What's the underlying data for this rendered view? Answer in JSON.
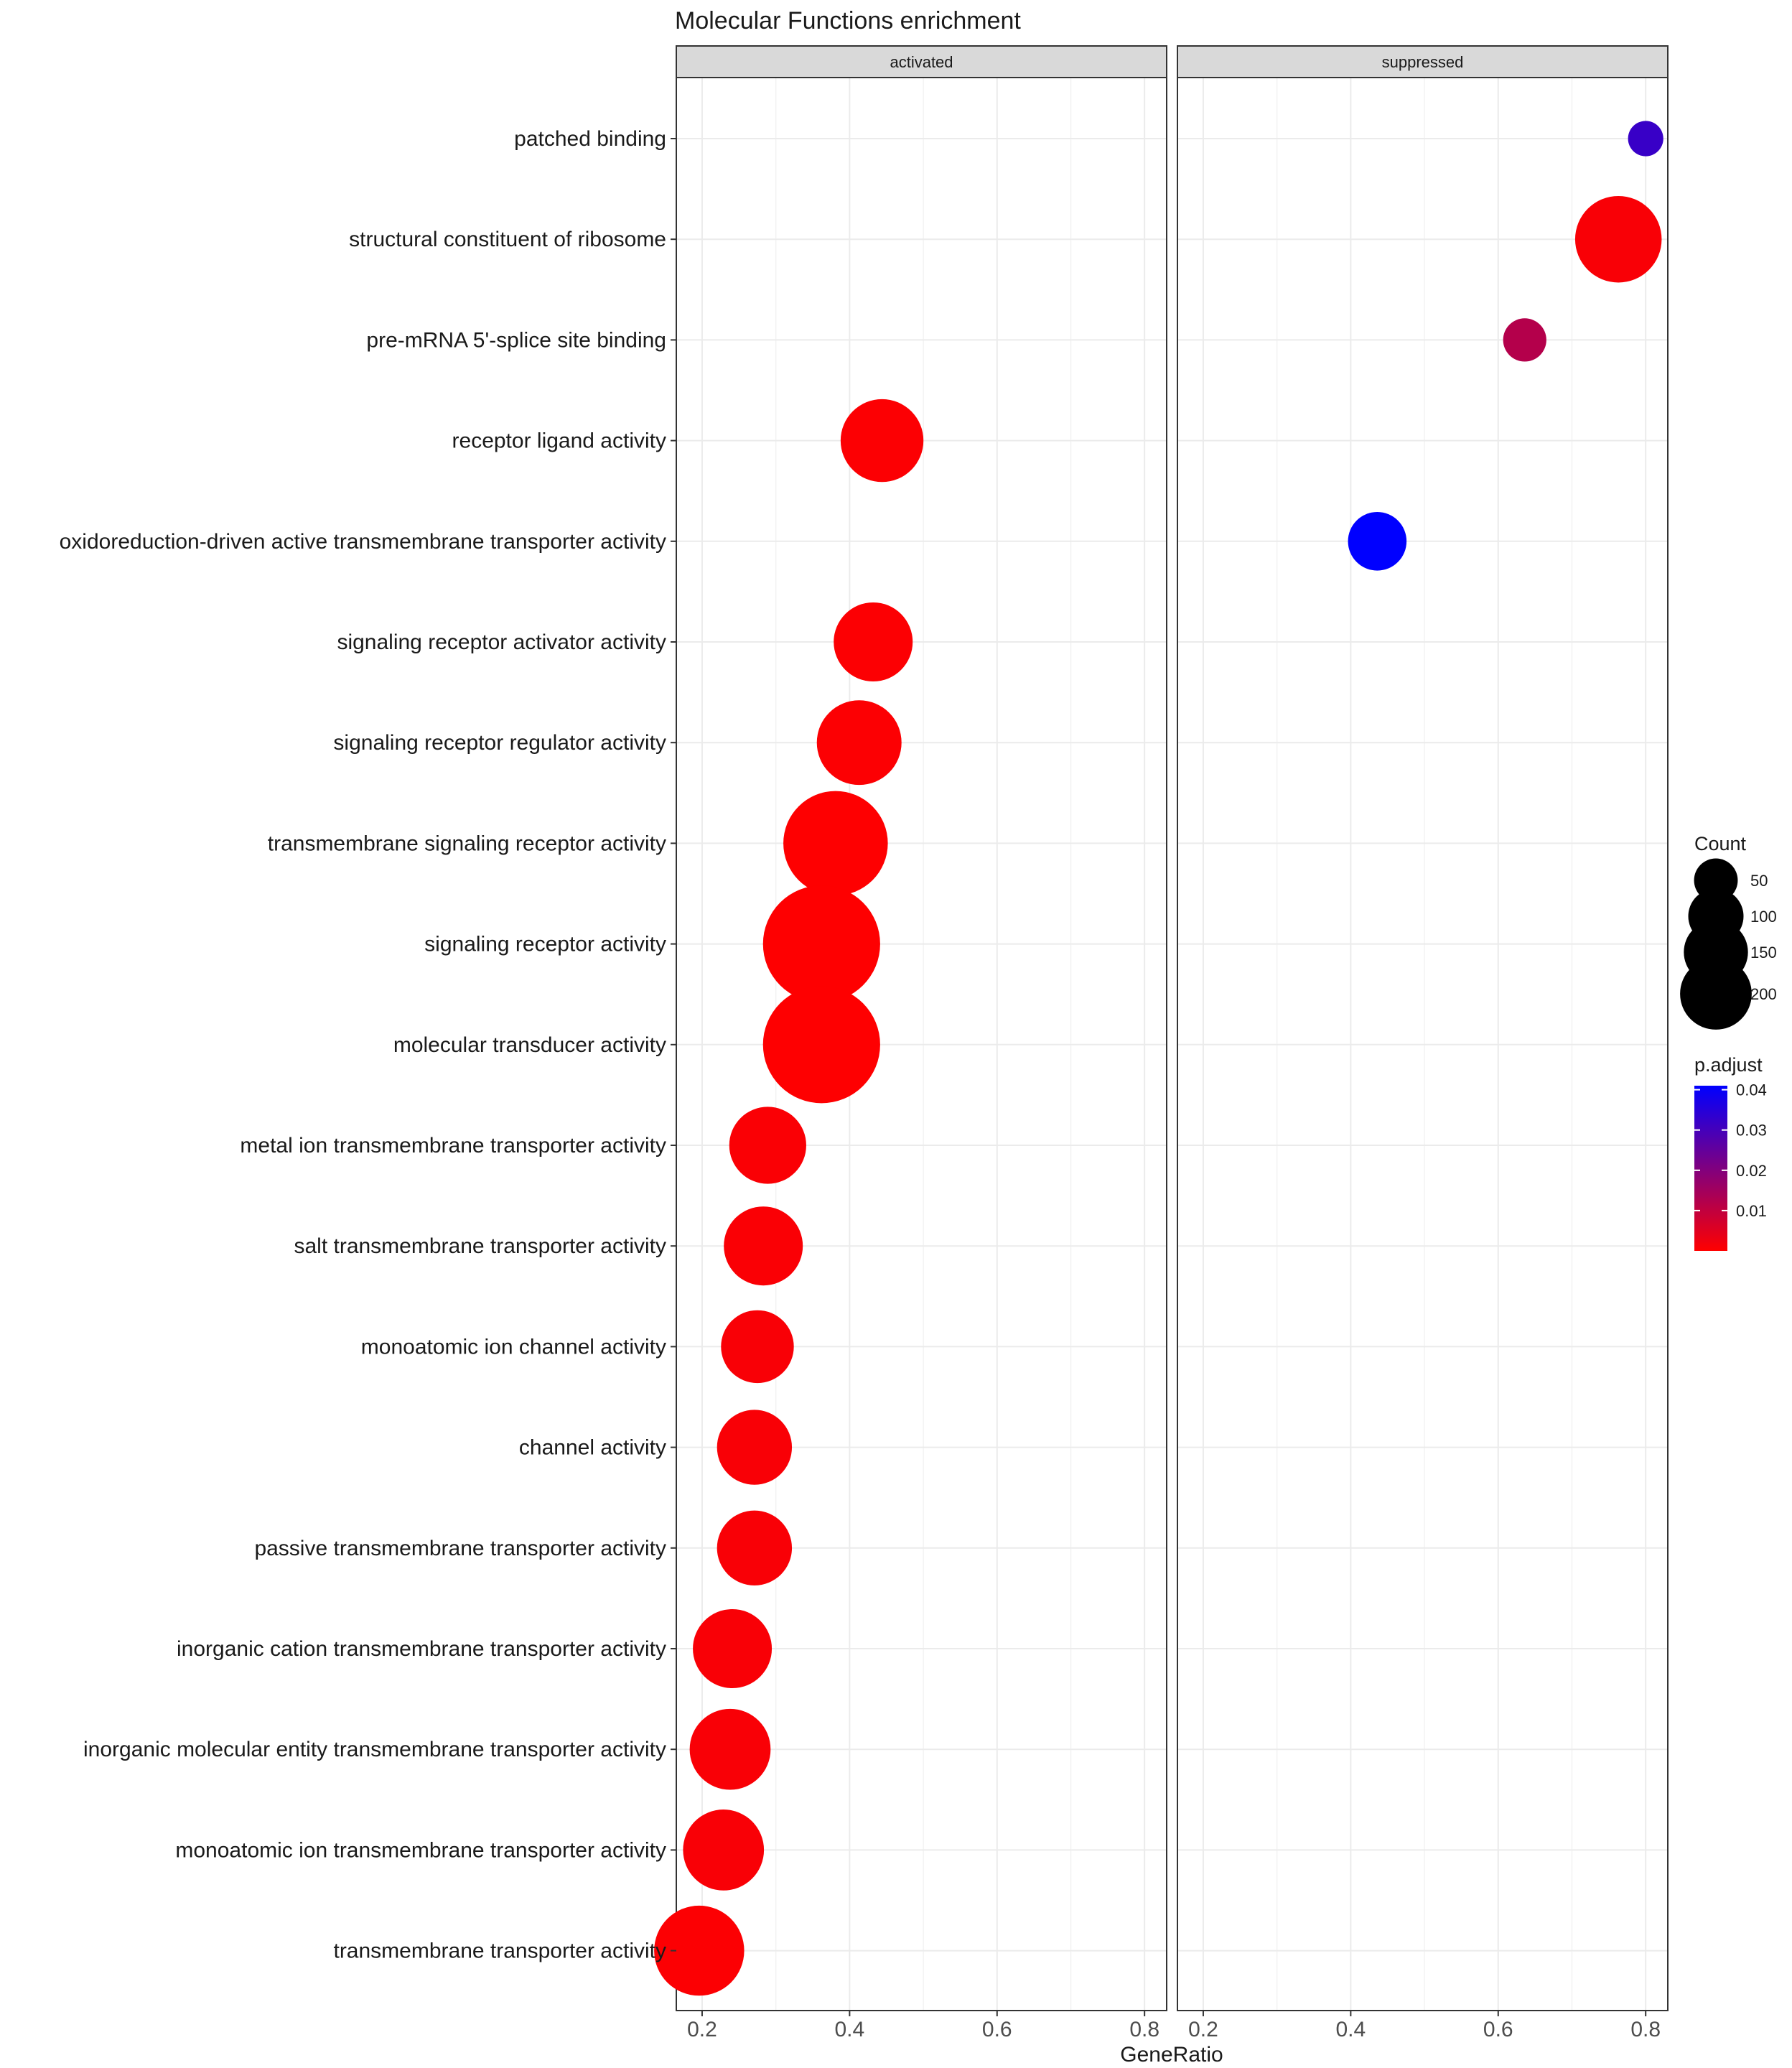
{
  "chart_data": {
    "type": "scatter",
    "title": "Molecular Functions enrichment",
    "xlabel": "GeneRatio",
    "ylabel": "",
    "xlim": [
      0.165,
      0.83
    ],
    "xticks": [
      0.2,
      0.4,
      0.6,
      0.8
    ],
    "xtick_labels": [
      "0.2",
      "0.4",
      "0.6",
      "0.8"
    ],
    "grid": true,
    "facets": [
      "activated",
      "suppressed"
    ],
    "categories": [
      "patched binding",
      "structural constituent of ribosome",
      "pre-mRNA 5'-splice site binding",
      "receptor ligand activity",
      "oxidoreduction-driven active transmembrane transporter activity",
      "signaling receptor activator activity",
      "signaling receptor regulator activity",
      "transmembrane signaling receptor activity",
      "signaling receptor activity",
      "molecular transducer activity",
      "metal ion transmembrane transporter activity",
      "salt transmembrane transporter activity",
      "monoatomic ion channel activity",
      "channel activity",
      "passive transmembrane transporter activity",
      "inorganic cation transmembrane transporter activity",
      "inorganic molecular entity transmembrane transporter activity",
      "monoatomic ion transmembrane transporter activity",
      "transmembrane transporter activity"
    ],
    "points": [
      {
        "facet": "suppressed",
        "category": "patched binding",
        "gene_ratio": 0.8,
        "count": 20,
        "p_adjust": 0.032
      },
      {
        "facet": "suppressed",
        "category": "structural constituent of ribosome",
        "gene_ratio": 0.763,
        "count": 120,
        "p_adjust": 0.001
      },
      {
        "facet": "suppressed",
        "category": "pre-mRNA 5'-splice site binding",
        "gene_ratio": 0.636,
        "count": 30,
        "p_adjust": 0.012
      },
      {
        "facet": "activated",
        "category": "receptor ligand activity",
        "gene_ratio": 0.444,
        "count": 110,
        "p_adjust": 0.0005
      },
      {
        "facet": "suppressed",
        "category": "oxidoreduction-driven active transmembrane transporter activity",
        "gene_ratio": 0.436,
        "count": 55,
        "p_adjust": 0.041
      },
      {
        "facet": "activated",
        "category": "signaling receptor activator activity",
        "gene_ratio": 0.432,
        "count": 100,
        "p_adjust": 0.0005
      },
      {
        "facet": "activated",
        "category": "signaling receptor regulator activity",
        "gene_ratio": 0.413,
        "count": 115,
        "p_adjust": 0.0005
      },
      {
        "facet": "activated",
        "category": "transmembrane signaling receptor activity",
        "gene_ratio": 0.381,
        "count": 175,
        "p_adjust": 0.0001
      },
      {
        "facet": "activated",
        "category": "signaling receptor activity",
        "gene_ratio": 0.362,
        "count": 220,
        "p_adjust": 0.0001
      },
      {
        "facet": "activated",
        "category": "molecular transducer activity",
        "gene_ratio": 0.362,
        "count": 220,
        "p_adjust": 0.0001
      },
      {
        "facet": "activated",
        "category": "metal ion transmembrane transporter activity",
        "gene_ratio": 0.289,
        "count": 95,
        "p_adjust": 0.0008
      },
      {
        "facet": "activated",
        "category": "salt transmembrane transporter activity",
        "gene_ratio": 0.283,
        "count": 100,
        "p_adjust": 0.0008
      },
      {
        "facet": "activated",
        "category": "monoatomic ion channel activity",
        "gene_ratio": 0.275,
        "count": 85,
        "p_adjust": 0.0009
      },
      {
        "facet": "activated",
        "category": "channel activity",
        "gene_ratio": 0.271,
        "count": 90,
        "p_adjust": 0.0009
      },
      {
        "facet": "activated",
        "category": "passive transmembrane transporter activity",
        "gene_ratio": 0.271,
        "count": 90,
        "p_adjust": 0.0009
      },
      {
        "facet": "activated",
        "category": "inorganic cation transmembrane transporter activity",
        "gene_ratio": 0.241,
        "count": 100,
        "p_adjust": 0.0009
      },
      {
        "facet": "activated",
        "category": "inorganic molecular entity transmembrane transporter activity",
        "gene_ratio": 0.238,
        "count": 105,
        "p_adjust": 0.0009
      },
      {
        "facet": "activated",
        "category": "monoatomic ion transmembrane transporter activity",
        "gene_ratio": 0.229,
        "count": 105,
        "p_adjust": 0.0009
      },
      {
        "facet": "activated",
        "category": "transmembrane transporter activity",
        "gene_ratio": 0.196,
        "count": 130,
        "p_adjust": 0.0005
      }
    ],
    "legend": {
      "size_title": "Count",
      "size_breaks": [
        50,
        100,
        150,
        200
      ],
      "size_labels": [
        "50",
        "100",
        "150",
        "200"
      ],
      "color_title": "p.adjust",
      "color_breaks": [
        0.04,
        0.03,
        0.02,
        0.01
      ],
      "color_labels": [
        "0.04",
        "0.03",
        "0.02",
        "0.01"
      ],
      "color_range": [
        0,
        0.041
      ],
      "color_low": "#ff0000",
      "color_high": "#0000ff",
      "placement": "right"
    }
  }
}
